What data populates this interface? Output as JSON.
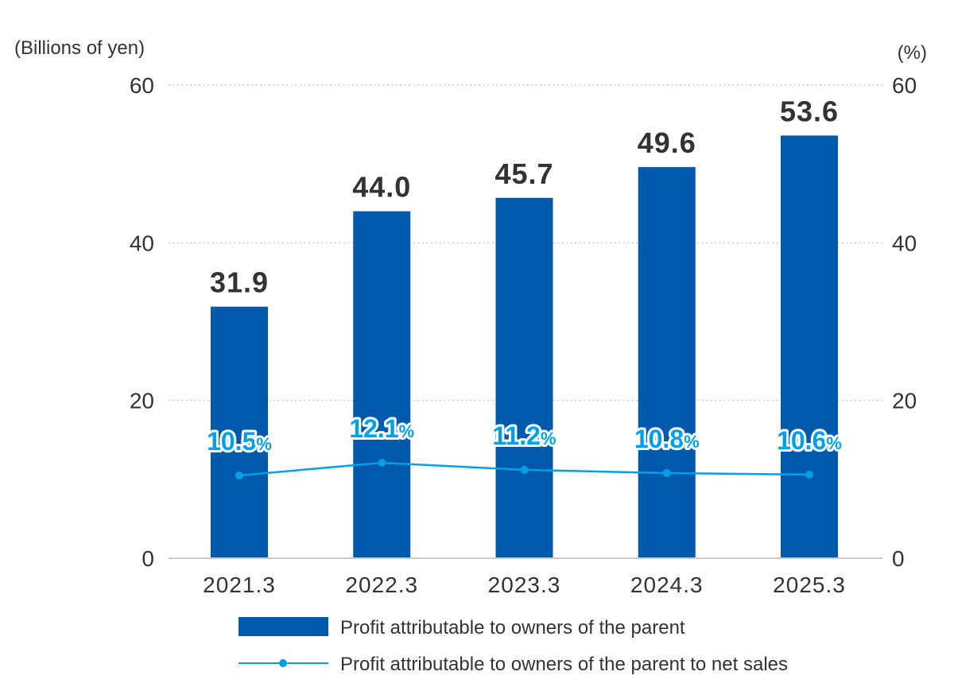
{
  "chart_data": {
    "type": "bar",
    "categories": [
      "2021.3",
      "2022.3",
      "2023.3",
      "2024.3",
      "2025.3"
    ],
    "series": [
      {
        "name": "Profit attributable to owners of the parent",
        "kind": "bar",
        "axis": "left",
        "values": [
          31.9,
          44.0,
          45.7,
          49.6,
          53.6
        ],
        "labels": [
          "31.9",
          "44.0",
          "45.7",
          "49.6",
          "53.6"
        ],
        "color": "#0059aa"
      },
      {
        "name": "Profit attributable to owners of the parent to net sales",
        "kind": "line",
        "axis": "right",
        "values": [
          10.5,
          12.1,
          11.2,
          10.8,
          10.6
        ],
        "labels": [
          "10.5",
          "12.1",
          "11.2",
          "10.8",
          "10.6"
        ],
        "label_suffix": "%",
        "color": "#00a0e9"
      }
    ],
    "left_axis": {
      "unit": "(Billions of yen)",
      "ylim": [
        0,
        60
      ],
      "ticks": [
        "0",
        "20",
        "40",
        "60"
      ]
    },
    "right_axis": {
      "unit": "(%)",
      "ylim": [
        0,
        60
      ],
      "ticks": [
        "0",
        "20",
        "40",
        "60"
      ]
    },
    "grid": true,
    "legend": "bottom"
  }
}
